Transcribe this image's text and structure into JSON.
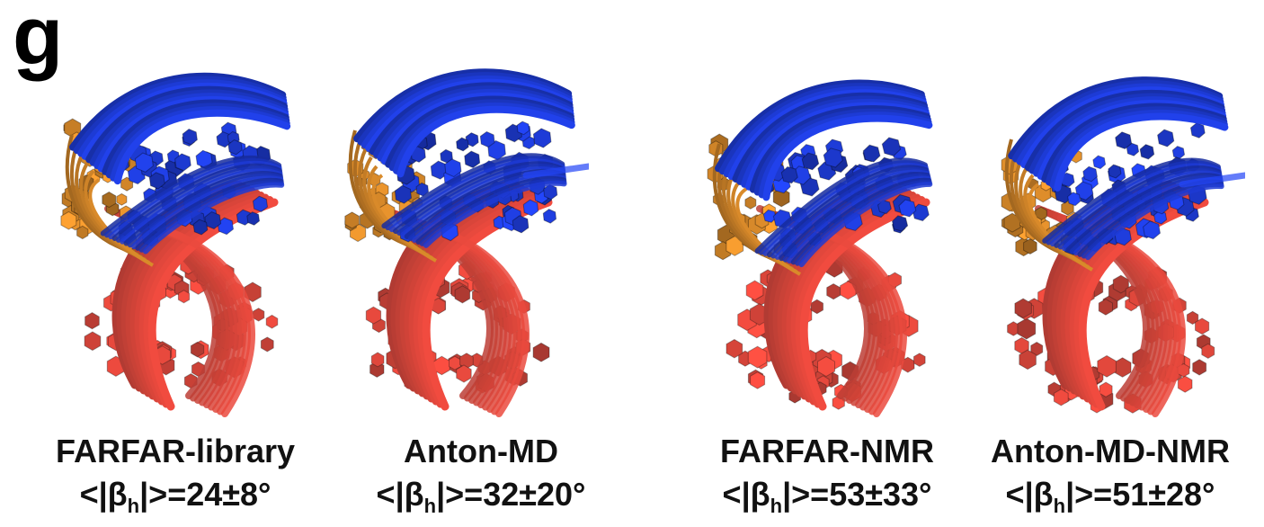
{
  "panel_label": "g",
  "colors": {
    "helix_top": "#1f3ee0",
    "junction": "#d98a2a",
    "helix_bottom": "#d6362a"
  },
  "panels": [
    {
      "name": "FARFAR-library",
      "metric_prefix": "<|β",
      "metric_sub": "h",
      "metric_suffix": "|>=24±8°"
    },
    {
      "name": "Anton-MD",
      "metric_prefix": "<|β",
      "metric_sub": "h",
      "metric_suffix": "|>=32±20°"
    },
    {
      "name": "FARFAR-NMR",
      "metric_prefix": "<|β",
      "metric_sub": "h",
      "metric_suffix": "|>=53±33°"
    },
    {
      "name": "Anton-MD-NMR",
      "metric_prefix": "<|β",
      "metric_sub": "h",
      "metric_suffix": "|>=51±28°"
    }
  ]
}
